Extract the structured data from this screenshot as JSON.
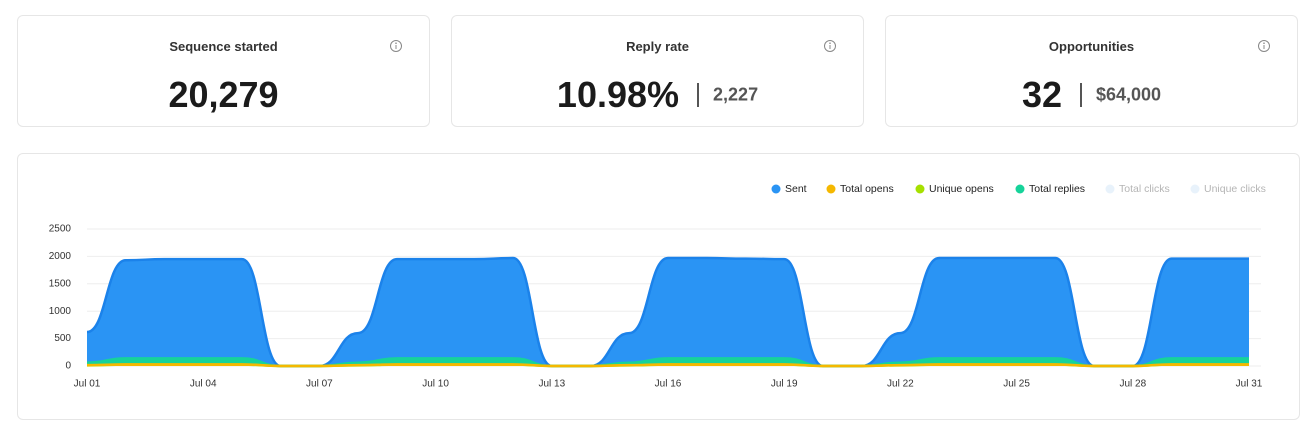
{
  "cards": [
    {
      "title": "Sequence started",
      "value": "20,279"
    },
    {
      "title": "Reply rate",
      "value": "10.98%",
      "secondary": "2,227"
    },
    {
      "title": "Opportunities",
      "value": "32",
      "secondary": "$64,000"
    }
  ],
  "chart_data": {
    "type": "area",
    "categories": [
      "Jul 01",
      null,
      null,
      "Jul 04",
      null,
      null,
      "Jul 07",
      null,
      null,
      "Jul 10",
      null,
      null,
      "Jul 13",
      null,
      null,
      "Jul 16",
      null,
      null,
      "Jul 19",
      null,
      null,
      "Jul 22",
      null,
      null,
      "Jul 25",
      null,
      null,
      "Jul 28",
      null,
      null,
      "Jul 31"
    ],
    "series": [
      {
        "name": "Sent",
        "color": "#2a94f4",
        "values": [
          620,
          1930,
          1950,
          1950,
          1950,
          0,
          0,
          600,
          1950,
          1950,
          1950,
          1970,
          0,
          0,
          600,
          1970,
          1970,
          1960,
          1950,
          0,
          0,
          600,
          1970,
          1970,
          1970,
          1970,
          0,
          0,
          1960,
          1960,
          1960
        ]
      },
      {
        "name": "Total opens",
        "color": "#f5b800",
        "values": [
          15,
          30,
          30,
          30,
          30,
          0,
          0,
          15,
          30,
          30,
          30,
          30,
          0,
          0,
          15,
          30,
          30,
          30,
          30,
          0,
          0,
          15,
          30,
          30,
          30,
          30,
          0,
          0,
          30,
          30,
          30
        ]
      },
      {
        "name": "Unique opens",
        "color": "#a6e000",
        "values": [
          12,
          25,
          25,
          25,
          25,
          0,
          0,
          12,
          25,
          25,
          25,
          25,
          0,
          0,
          12,
          25,
          25,
          25,
          25,
          0,
          0,
          12,
          25,
          25,
          25,
          25,
          0,
          0,
          25,
          25,
          25
        ]
      },
      {
        "name": "Total replies",
        "color": "#16d39a",
        "values": [
          60,
          140,
          140,
          140,
          140,
          0,
          0,
          60,
          140,
          140,
          140,
          140,
          0,
          0,
          60,
          140,
          140,
          140,
          140,
          0,
          0,
          60,
          140,
          140,
          140,
          140,
          0,
          0,
          140,
          140,
          140
        ]
      },
      {
        "name": "Total clicks",
        "color": "#e8f2fb",
        "hidden": true
      },
      {
        "name": "Unique clicks",
        "color": "#e8f2fb",
        "hidden": true
      }
    ],
    "ylim": [
      0,
      2500
    ],
    "yticks": [
      0,
      500,
      1000,
      1500,
      2000,
      2500
    ],
    "grid": true,
    "legend": "top-right"
  }
}
